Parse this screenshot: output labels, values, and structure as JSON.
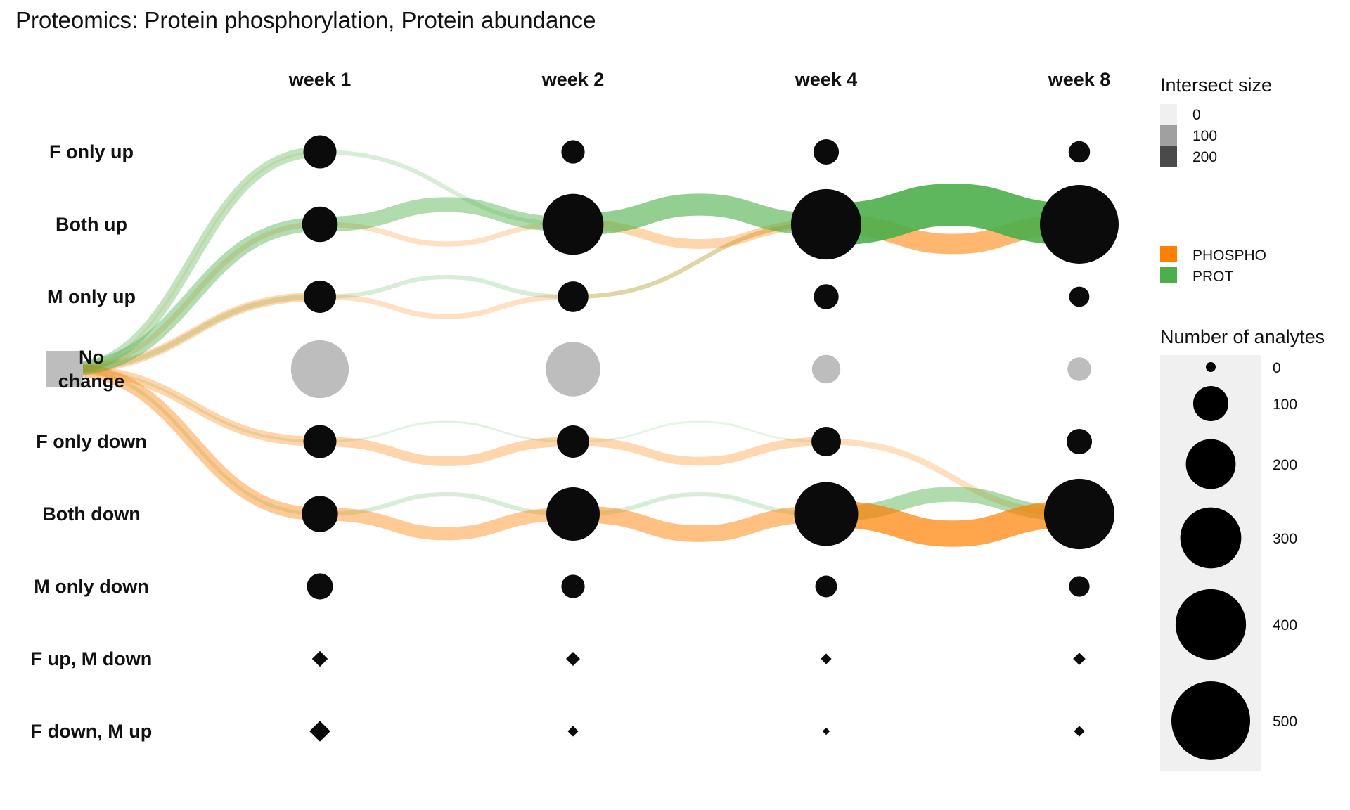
{
  "title": "Proteomics: Protein phosphorylation, Protein abundance",
  "chart_data": {
    "type": "sankey-bubble",
    "timepoints": [
      "week 1",
      "week 2",
      "week 4",
      "week 8"
    ],
    "rows": [
      {
        "key": "F only up",
        "label": [
          "F only up"
        ],
        "shape": "circle",
        "values": [
          88,
          44,
          52,
          37
        ]
      },
      {
        "key": "Both up",
        "label": [
          "Both up"
        ],
        "shape": "circle",
        "values": [
          102,
          300,
          400,
          500
        ]
      },
      {
        "key": "M only up",
        "label": [
          "M only up"
        ],
        "shape": "circle",
        "values": [
          84,
          76,
          50,
          33
        ]
      },
      {
        "key": "No change",
        "label": [
          "No",
          "change"
        ],
        "shape": "circle",
        "values": [
          270,
          240,
          65,
          45
        ]
      },
      {
        "key": "F only down",
        "label": [
          "F only down"
        ],
        "shape": "circle",
        "values": [
          88,
          84,
          70,
          52
        ]
      },
      {
        "key": "Both down",
        "label": [
          "Both down"
        ],
        "shape": "circle",
        "values": [
          105,
          230,
          330,
          400
        ]
      },
      {
        "key": "M only down",
        "label": [
          "M only down"
        ],
        "shape": "circle",
        "values": [
          55,
          44,
          38,
          34
        ]
      },
      {
        "key": "F up, M down",
        "label": [
          "F up, M down"
        ],
        "shape": "diamond",
        "values": [
          3,
          2.5,
          1.5,
          2
        ]
      },
      {
        "key": "F down, M up",
        "label": [
          "F down, M up"
        ],
        "shape": "diamond",
        "values": [
          4.5,
          1.5,
          0.5,
          1.5
        ]
      }
    ],
    "start_node": "No change",
    "flows": [
      {
        "assay": "PROT",
        "from": "No change",
        "to": "F only up",
        "step": 0,
        "size": 60
      },
      {
        "assay": "PROT",
        "from": "No change",
        "to": "Both up",
        "step": 0,
        "size": 80
      },
      {
        "assay": "PROT",
        "from": "No change",
        "to": "M only up",
        "step": 0,
        "size": 30
      },
      {
        "assay": "PROT",
        "from": "No change",
        "to": "F only down",
        "step": 0,
        "size": 15
      },
      {
        "assay": "PROT",
        "from": "No change",
        "to": "Both down",
        "step": 0,
        "size": 20
      },
      {
        "assay": "PHOSPHO",
        "from": "No change",
        "to": "F only up",
        "step": 0,
        "size": 10
      },
      {
        "assay": "PHOSPHO",
        "from": "No change",
        "to": "Both up",
        "step": 0,
        "size": 30
      },
      {
        "assay": "PHOSPHO",
        "from": "No change",
        "to": "M only up",
        "step": 0,
        "size": 50
      },
      {
        "assay": "PHOSPHO",
        "from": "No change",
        "to": "F only down",
        "step": 0,
        "size": 55
      },
      {
        "assay": "PHOSPHO",
        "from": "No change",
        "to": "Both down",
        "step": 0,
        "size": 75
      },
      {
        "assay": "PROT",
        "from": "F only up",
        "to": "Both up",
        "step": 1,
        "size": 25
      },
      {
        "assay": "PROT",
        "from": "Both up",
        "to": "Both up",
        "step": 1,
        "size": 85
      },
      {
        "assay": "PROT",
        "from": "M only up",
        "to": "M only up",
        "step": 1,
        "size": 25
      },
      {
        "assay": "PROT",
        "from": "F only down",
        "to": "F only down",
        "step": 1,
        "size": 10
      },
      {
        "assay": "PROT",
        "from": "Both down",
        "to": "Both down",
        "step": 1,
        "size": 25
      },
      {
        "assay": "PHOSPHO",
        "from": "Both up",
        "to": "Both up",
        "step": 1,
        "size": 30
      },
      {
        "assay": "PHOSPHO",
        "from": "M only up",
        "to": "M only up",
        "step": 1,
        "size": 30
      },
      {
        "assay": "PHOSPHO",
        "from": "F only down",
        "to": "F only down",
        "step": 1,
        "size": 55
      },
      {
        "assay": "PHOSPHO",
        "from": "Both down",
        "to": "Both down",
        "step": 1,
        "size": 75
      },
      {
        "assay": "PROT",
        "from": "Both up",
        "to": "Both up",
        "step": 2,
        "size": 125
      },
      {
        "assay": "PROT",
        "from": "M only up",
        "to": "Both up",
        "step": 2,
        "size": 25
      },
      {
        "assay": "PROT",
        "from": "F only down",
        "to": "F only down",
        "step": 2,
        "size": 5
      },
      {
        "assay": "PROT",
        "from": "Both down",
        "to": "Both down",
        "step": 2,
        "size": 25
      },
      {
        "assay": "PHOSPHO",
        "from": "Both up",
        "to": "Both up",
        "step": 2,
        "size": 55
      },
      {
        "assay": "PHOSPHO",
        "from": "M only up",
        "to": "Both up",
        "step": 2,
        "size": 25
      },
      {
        "assay": "PHOSPHO",
        "from": "F only down",
        "to": "F only down",
        "step": 2,
        "size": 50
      },
      {
        "assay": "PHOSPHO",
        "from": "Both down",
        "to": "Both down",
        "step": 2,
        "size": 95
      },
      {
        "assay": "PROT",
        "from": "Both up",
        "to": "Both up",
        "step": 3,
        "size": 240
      },
      {
        "assay": "PROT",
        "from": "Both down",
        "to": "Both down",
        "step": 3,
        "size": 85
      },
      {
        "assay": "PHOSPHO",
        "from": "Both up",
        "to": "Both up",
        "step": 3,
        "size": 115
      },
      {
        "assay": "PHOSPHO",
        "from": "Both down",
        "to": "Both down",
        "step": 3,
        "size": 150
      },
      {
        "assay": "PHOSPHO",
        "from": "F only down",
        "to": "Both down",
        "step": 3,
        "size": 35
      }
    ],
    "legend": {
      "intersect": {
        "title": "Intersect size",
        "items": [
          {
            "label": "0",
            "shade": "#f0f0f0"
          },
          {
            "label": "100",
            "shade": "#a0a0a0"
          },
          {
            "label": "200",
            "shade": "#4a4a4a"
          }
        ]
      },
      "assay": {
        "items": [
          {
            "label": "PHOSPHO",
            "color": "#ff7f00"
          },
          {
            "label": "PROT",
            "color": "#4daf4a"
          }
        ]
      },
      "size": {
        "title": "Number of analytes",
        "items": [
          {
            "label": "0",
            "value": 0
          },
          {
            "label": "100",
            "value": 100
          },
          {
            "label": "200",
            "value": 200
          },
          {
            "label": "300",
            "value": 300
          },
          {
            "label": "400",
            "value": 400
          },
          {
            "label": "500",
            "value": 500
          }
        ]
      }
    },
    "colors": {
      "PHOSPHO": "#ff7f00",
      "PROT": "#4daf4a",
      "node": "#0b0b0b",
      "no_change": "#bdbdbd",
      "legend_panel": "#f0f0f0"
    }
  }
}
